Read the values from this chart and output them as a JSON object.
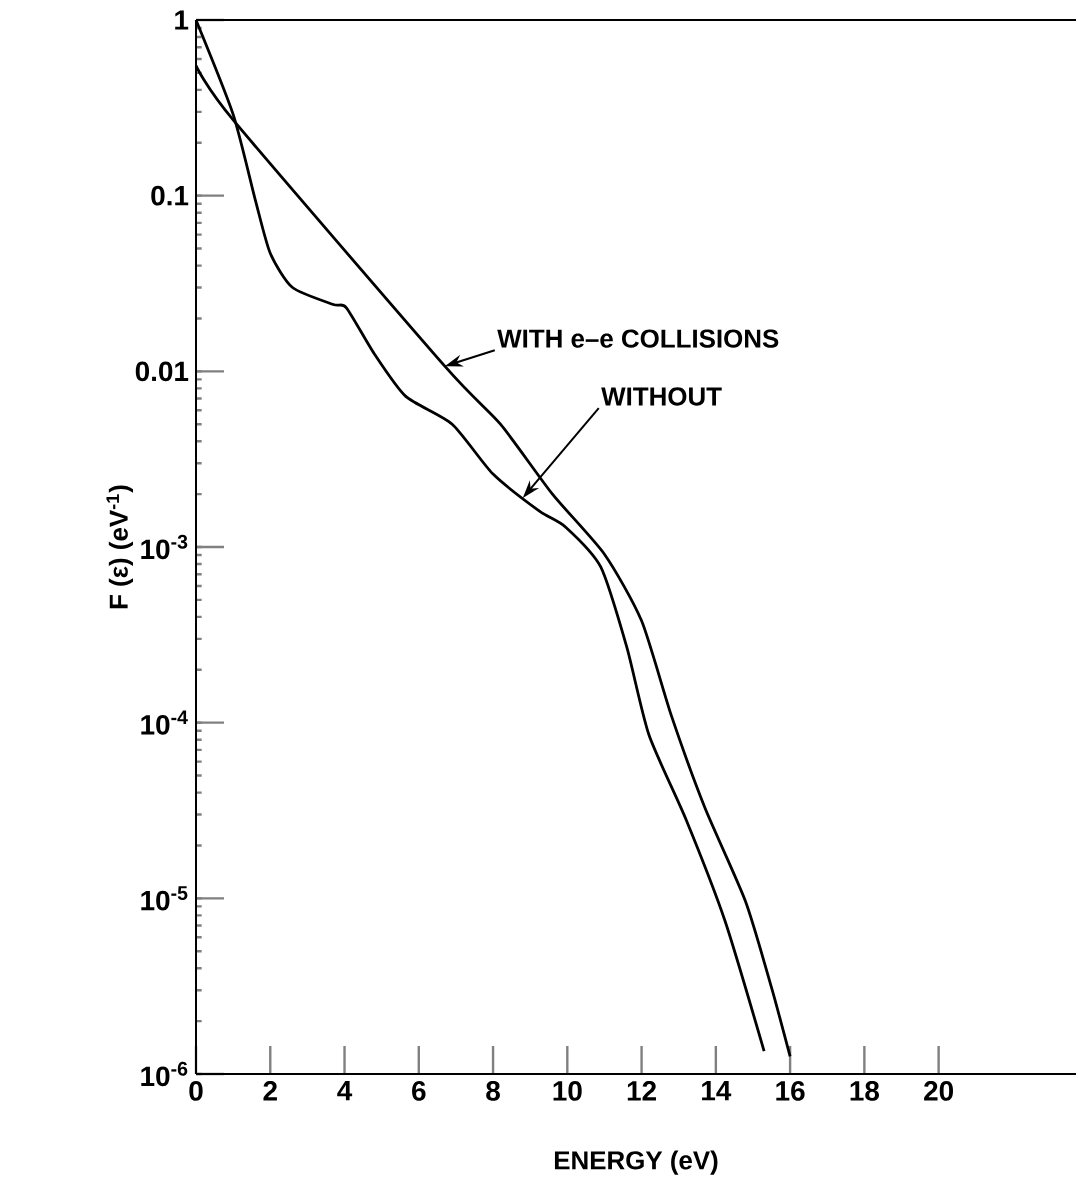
{
  "chart_data": {
    "type": "line",
    "xlabel": "ENERGY (eV)",
    "ylabel": "F (ε) (eV$^{-1}$)",
    "log": "y",
    "xlim": [
      0,
      23.7
    ],
    "ylim": [
      1e-06,
      1
    ],
    "xticks": [
      0,
      2,
      4,
      6,
      8,
      10,
      12,
      14,
      16,
      18,
      20
    ],
    "yticks": [
      {
        "value": 1e-06,
        "label": "10$^{-6}$"
      },
      {
        "value": 1e-05,
        "label": "10$^{-5}$"
      },
      {
        "value": 0.0001,
        "label": "10$^{-4}$"
      },
      {
        "value": 0.001,
        "label": "10$^{-3}$"
      },
      0.01,
      0.1,
      1
    ],
    "series": [
      {
        "color": "#000000",
        "x": [
          0,
          1.0,
          6.7,
          8.2,
          9.6,
          11.0,
          12.0,
          12.8,
          13.7,
          14.8,
          15.5,
          16.0
        ],
        "values": [
          0.55,
          0.27,
          0.0107,
          0.005,
          0.002,
          0.00091,
          0.00038,
          0.00011,
          3.3e-05,
          9.6e-06,
          3.1e-06,
          1.26e-06
        ]
      },
      {
        "color": "#000000",
        "x": [
          0,
          1.0,
          1.6,
          2.0,
          2.6,
          3.7,
          4.05,
          4.8,
          5.65,
          6.9,
          8.0,
          9.25,
          9.95,
          10.9,
          11.6,
          12.2,
          13.2,
          14.25,
          15.3
        ],
        "values": [
          1,
          0.29,
          0.094,
          0.047,
          0.03,
          0.024,
          0.023,
          0.0126,
          0.0072,
          0.005,
          0.0026,
          0.0016,
          0.0013,
          0.00077,
          0.00027,
          8.5e-05,
          2.8e-05,
          7.4e-06,
          1.35e-06
        ]
      }
    ],
    "annotations": [
      {
        "text": "WITH e–e COLLISIONS",
        "x": 6.7,
        "y": 0.0107
      },
      {
        "text": "WITHOUT",
        "x": 8.8,
        "y": 0.0019
      }
    ]
  }
}
